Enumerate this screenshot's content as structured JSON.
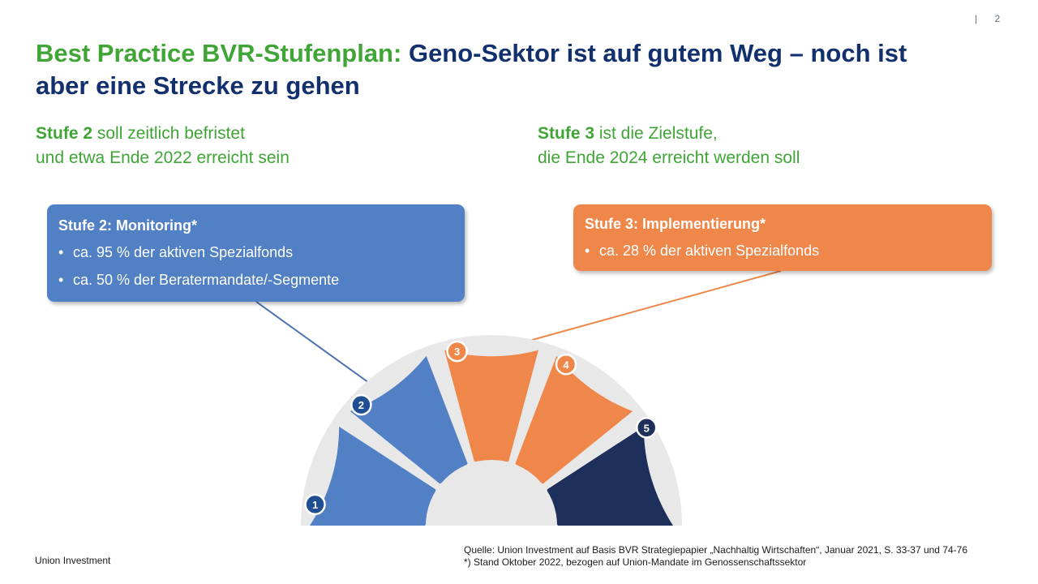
{
  "page": {
    "number": "2",
    "separator": "|"
  },
  "title": {
    "part_green": "Best Practice BVR-Stufenplan:",
    "part_blue": "Geno-Sektor ist auf gutem Weg – noch ist aber eine Strecke zu gehen"
  },
  "left_note": {
    "bold": "Stufe 2",
    "line1_rest": " soll zeitlich befristet",
    "line2": "und etwa Ende 2022 erreicht sein"
  },
  "right_note": {
    "bold": "Stufe 3",
    "line1_rest": " ist die Zielstufe,",
    "line2": "die Ende 2024 erreicht werden soll"
  },
  "box_monitoring": {
    "heading": "Stufe 2: Monitoring*",
    "bullets": [
      "ca. 95 % der aktiven Spezialfonds",
      "ca. 50 % der Beratermandate/-Segmente"
    ]
  },
  "box_implementierung": {
    "heading": "Stufe 3: Implementierung*",
    "bullets": [
      "ca. 28 % der aktiven Spezialfonds"
    ]
  },
  "gauge": {
    "segments": [
      {
        "label": "1",
        "color": "#5180c4",
        "badge": "#1f4e92"
      },
      {
        "label": "2",
        "color": "#5180c4",
        "badge": "#1f4e92"
      },
      {
        "label": "3",
        "color": "#f0874a",
        "badge": "#f0874a"
      },
      {
        "label": "4",
        "color": "#f0874a",
        "badge": "#f0874a"
      },
      {
        "label": "5",
        "color": "#1f2f5c",
        "badge": "#1f2f5c"
      }
    ],
    "track_color": "#e8e8e8"
  },
  "colors": {
    "green": "#3fa535",
    "navy": "#12306e",
    "blue": "#5180c4",
    "orange": "#f0874a",
    "dark_navy": "#1f2f5c"
  },
  "footer": {
    "brand": "Union Investment",
    "source_line1": "Quelle: Union Investment auf Basis BVR Strategiepapier „Nachhaltig Wirtschaften“, Januar 2021, S. 33-37 und 74-76",
    "source_line2": "*) Stand Oktober 2022, bezogen auf Union-Mandate  im Genossenschaftssektor"
  }
}
